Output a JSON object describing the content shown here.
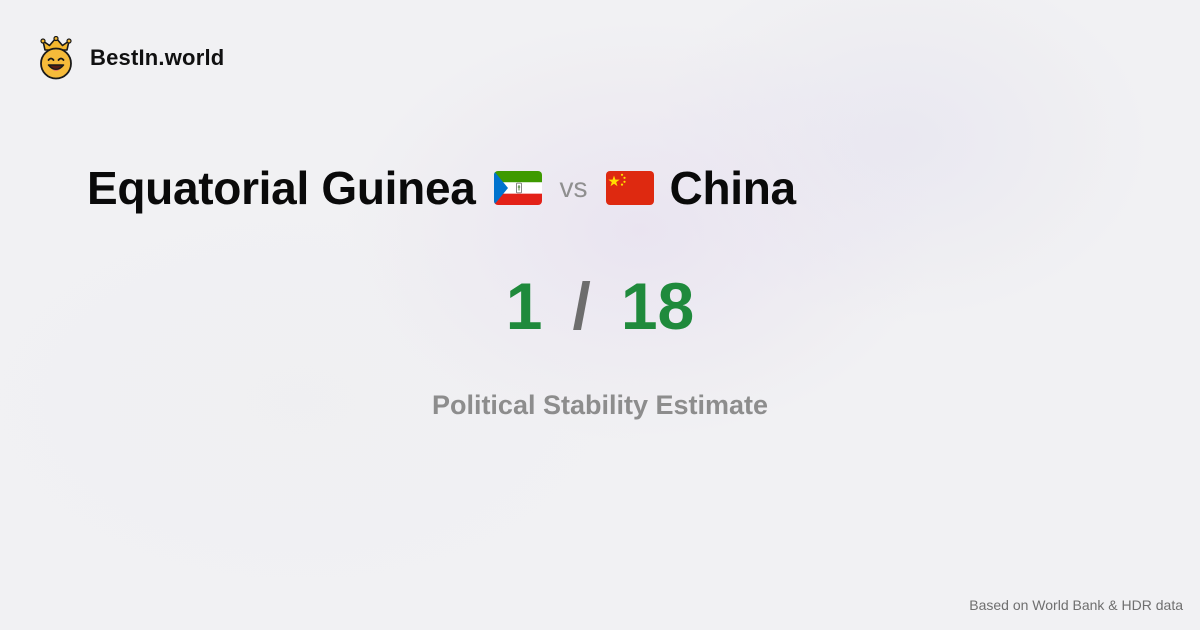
{
  "brand": {
    "name": "BestIn.world",
    "logo_icon": "crowned-smiley-icon"
  },
  "comparison": {
    "left_country": "Equatorial Guinea",
    "left_flag_icon": "flag-equatorial-guinea-icon",
    "vs_label": "vs",
    "right_country": "China",
    "right_flag_icon": "flag-china-icon"
  },
  "score": {
    "left_rank": "1",
    "separator": "/",
    "right_rank": "18",
    "rank_color": "#1f8a3c"
  },
  "metric": {
    "label": "Political Stability Estimate"
  },
  "footer": {
    "source": "Based on World Bank & HDR data"
  }
}
